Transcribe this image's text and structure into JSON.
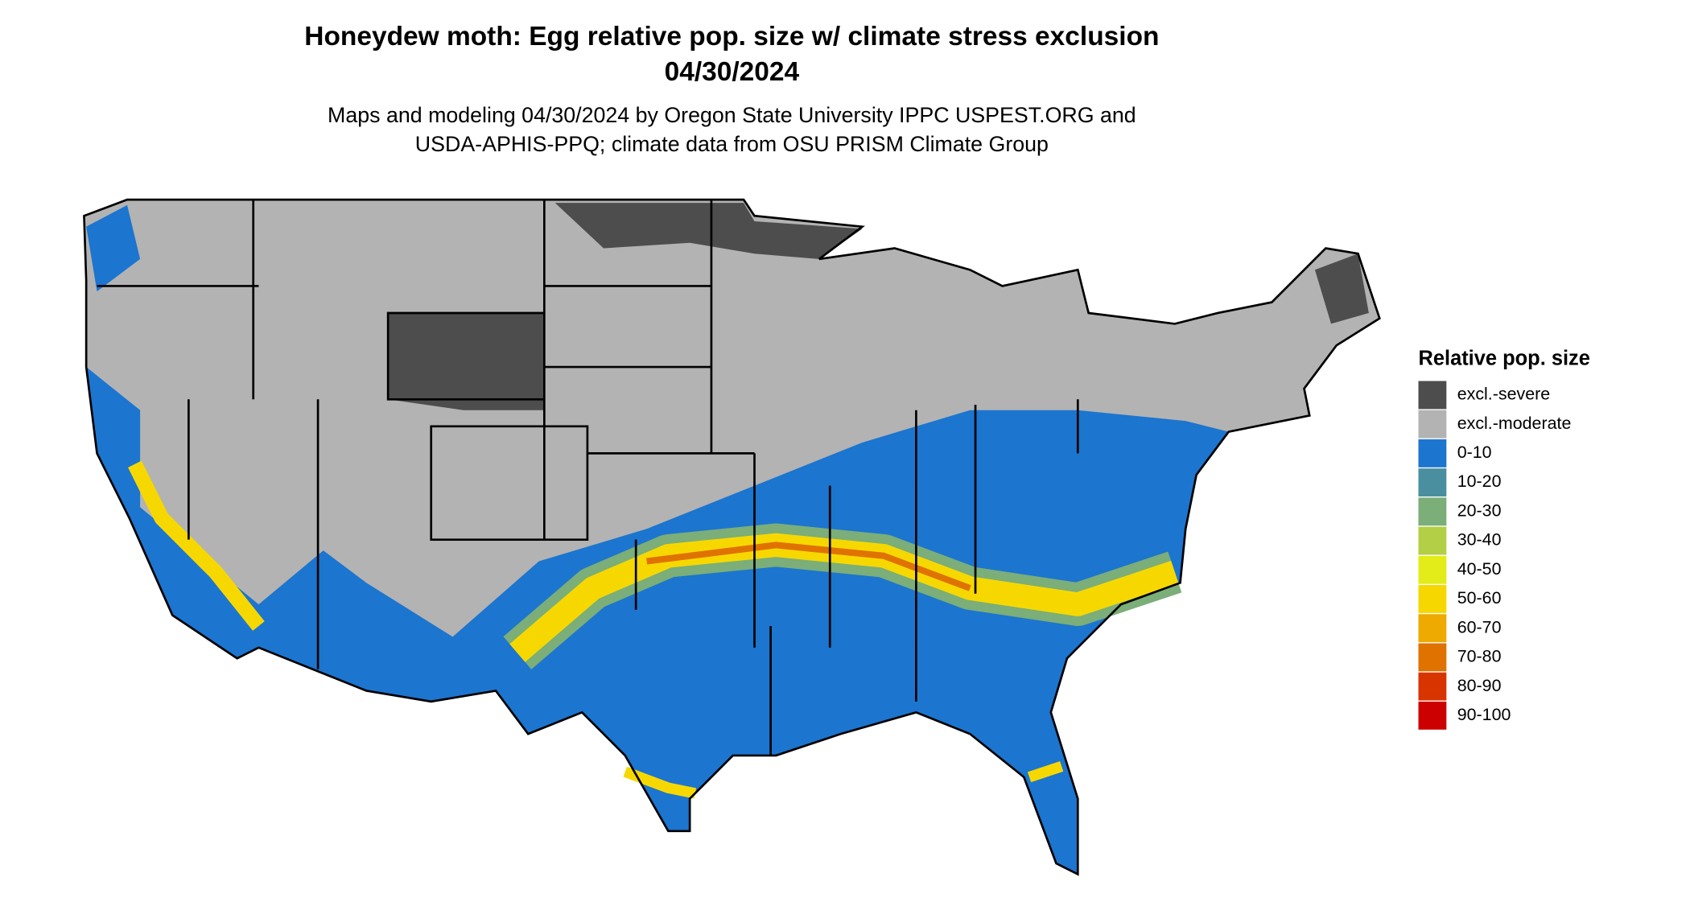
{
  "title": "Honeydew moth: Egg relative pop. size w/ climate stress exclusion",
  "date": "04/30/2024",
  "subtitle_lines": [
    "Maps and modeling 04/30/2024 by Oregon State University IPPC USPEST.ORG and",
    "USDA-APHIS-PPQ; climate data from OSU PRISM Climate Group"
  ],
  "legend": {
    "title": "Relative pop. size",
    "items": [
      {
        "label": "excl.-severe",
        "color": "#4d4d4d"
      },
      {
        "label": "excl.-moderate",
        "color": "#b3b3b3"
      },
      {
        "label": "0-10",
        "color": "#1c75cf"
      },
      {
        "label": "10-20",
        "color": "#4a8fa0"
      },
      {
        "label": "20-30",
        "color": "#7bae78"
      },
      {
        "label": "30-40",
        "color": "#b3cf45"
      },
      {
        "label": "40-50",
        "color": "#e3ec18"
      },
      {
        "label": "50-60",
        "color": "#f6d800"
      },
      {
        "label": "60-70",
        "color": "#eeaa00"
      },
      {
        "label": "70-80",
        "color": "#e07200"
      },
      {
        "label": "80-90",
        "color": "#d83400"
      },
      {
        "label": "90-100",
        "color": "#cc0000"
      }
    ]
  }
}
